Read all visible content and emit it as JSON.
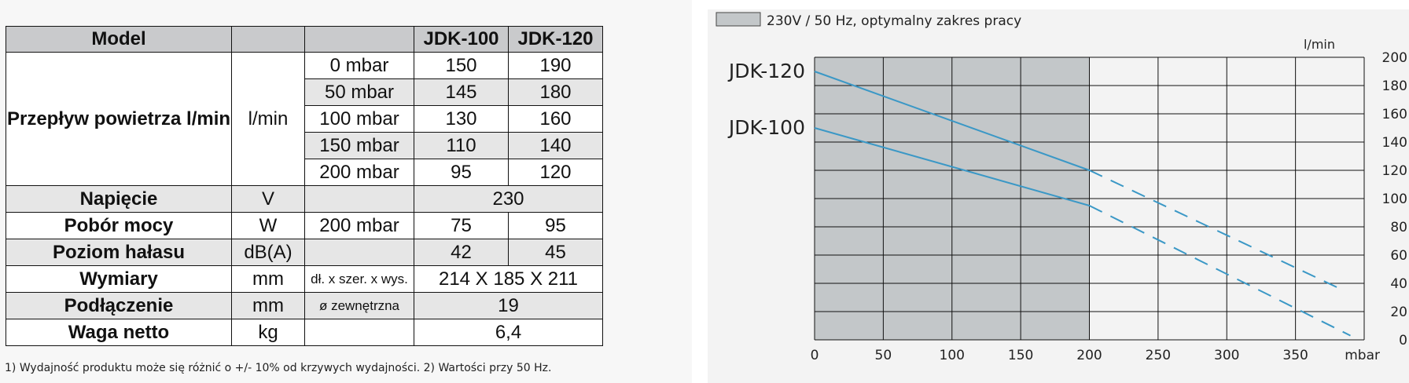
{
  "table": {
    "header": {
      "model": "Model",
      "col_unit": "",
      "col_condition": "",
      "model_a": "JDK-100",
      "model_b": "JDK-120"
    },
    "airflow": {
      "label": "Przepływ powietrza l/min",
      "unit": "l/min",
      "rows": [
        {
          "condition": "0 mbar",
          "a": "150",
          "b": "190"
        },
        {
          "condition": "50 mbar",
          "a": "145",
          "b": "180"
        },
        {
          "condition": "100 mbar",
          "a": "130",
          "b": "160"
        },
        {
          "condition": "150 mbar",
          "a": "110",
          "b": "140"
        },
        {
          "condition": "200 mbar",
          "a": "95",
          "b": "120"
        }
      ]
    },
    "voltage": {
      "label": "Napięcie",
      "unit": "V",
      "value": "230"
    },
    "power": {
      "label": "Pobór mocy",
      "unit": "W",
      "condition": "200 mbar",
      "a": "75",
      "b": "95"
    },
    "noise": {
      "label": "Poziom hałasu",
      "unit": "dB(A)",
      "a": "42",
      "b": "45"
    },
    "dimensions": {
      "label": "Wymiary",
      "unit": "mm",
      "condition": "dł. x szer.  x wys.",
      "value": "214 X 185 X 211"
    },
    "connection": {
      "label": "Podłączenie",
      "unit": "mm",
      "condition": "ø zewnętrzna",
      "value": "19"
    },
    "weight": {
      "label": "Waga netto",
      "unit": "kg",
      "value": "6,4"
    }
  },
  "footnote": "1) Wydajność produktu może się różnić o +/- 10% od krzywych wydajności. 2) Wartości przy 50 Hz.",
  "chart_data": {
    "type": "line",
    "title": "",
    "legend": {
      "label": "230V / 50 Hz, optymalny zakres     pracy",
      "placement": "top-left"
    },
    "xlabel": "mbar",
    "ylabel": "l/min",
    "xlim": [
      0,
      400
    ],
    "ylim": [
      0,
      200
    ],
    "x_ticks": [
      "0",
      "50",
      "100",
      "150",
      "200",
      "250",
      "300",
      "350"
    ],
    "y_ticks": [
      "0",
      "20",
      "40",
      "60",
      "80",
      "100",
      "120",
      "140",
      "160",
      "180",
      "200"
    ],
    "optimal_range": [
      0,
      200
    ],
    "grid": true,
    "colors": {
      "line": "#3b98c6",
      "optimal": "#c3c7c9",
      "grid": "#111111"
    },
    "series": [
      {
        "name": "JDK-120",
        "solid": [
          [
            0,
            190
          ],
          [
            200,
            120
          ]
        ],
        "dashed": [
          [
            200,
            120
          ],
          [
            385,
            35
          ]
        ]
      },
      {
        "name": "JDK-100",
        "solid": [
          [
            0,
            150
          ],
          [
            200,
            95
          ]
        ],
        "dashed": [
          [
            200,
            95
          ],
          [
            390,
            3
          ]
        ]
      }
    ]
  }
}
